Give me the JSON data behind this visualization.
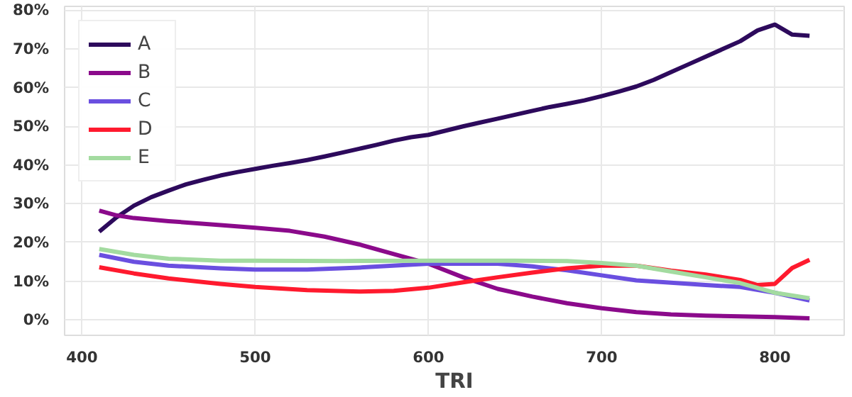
{
  "chart_data": {
    "type": "line",
    "xlabel": "TRI",
    "xlim": [
      390,
      840
    ],
    "ylim": [
      -4,
      81
    ],
    "xticks": [
      400,
      500,
      600,
      700,
      800
    ],
    "yticks": [
      {
        "value": 0,
        "label": "0%"
      },
      {
        "value": 10,
        "label": "10%"
      },
      {
        "value": 20,
        "label": "20%"
      },
      {
        "value": 30,
        "label": "30%"
      },
      {
        "value": 40,
        "label": "40%"
      },
      {
        "value": 50,
        "label": "50%"
      },
      {
        "value": 60,
        "label": "60%"
      },
      {
        "value": 70,
        "label": "70%"
      },
      {
        "value": 80,
        "label": "80%"
      }
    ],
    "grid": true,
    "legend": "top left",
    "line_style": "solid",
    "marker": "none",
    "series": [
      {
        "name": "A",
        "color": "#2d0a5c",
        "x": [
          410,
          420,
          430,
          440,
          450,
          460,
          470,
          480,
          490,
          500,
          510,
          520,
          530,
          540,
          550,
          560,
          570,
          580,
          590,
          600,
          610,
          620,
          630,
          640,
          650,
          660,
          670,
          680,
          690,
          700,
          710,
          720,
          730,
          740,
          750,
          760,
          770,
          780,
          790,
          800,
          810,
          820
        ],
        "values": [
          22.8,
          26.5,
          29.5,
          31.7,
          33.4,
          35,
          36.2,
          37.3,
          38.2,
          39,
          39.8,
          40.5,
          41.3,
          42.2,
          43.2,
          44.2,
          45.2,
          46.3,
          47.2,
          47.8,
          48.9,
          50,
          51,
          52,
          53,
          54,
          55,
          55.8,
          56.7,
          57.8,
          59,
          60.3,
          62,
          64,
          66,
          68,
          70,
          72,
          74.8,
          76.3,
          73.7,
          73.4
        ]
      },
      {
        "name": "B",
        "color": "#8b0a8b",
        "x": [
          410,
          420,
          430,
          450,
          480,
          500,
          520,
          540,
          560,
          580,
          600,
          620,
          640,
          660,
          680,
          700,
          720,
          740,
          760,
          780,
          800,
          820
        ],
        "values": [
          28.2,
          27,
          26.3,
          25.5,
          24.5,
          23.8,
          23,
          21.5,
          19.5,
          17,
          14.5,
          11,
          8,
          6,
          4.3,
          3,
          2,
          1.4,
          1.1,
          0.9,
          0.7,
          0.4
        ]
      },
      {
        "name": "C",
        "color": "#6a4fe0",
        "x": [
          410,
          430,
          450,
          480,
          500,
          530,
          560,
          600,
          640,
          660,
          680,
          700,
          720,
          740,
          760,
          780,
          800,
          820
        ],
        "values": [
          16.8,
          15,
          14,
          13.3,
          13,
          13,
          13.5,
          14.5,
          14.5,
          13.8,
          12.8,
          11.5,
          10.2,
          9.6,
          9,
          8.5,
          7,
          5
        ]
      },
      {
        "name": "D",
        "color": "#ff1a2e",
        "x": [
          410,
          430,
          450,
          480,
          500,
          530,
          560,
          580,
          600,
          620,
          640,
          660,
          680,
          700,
          720,
          740,
          760,
          780,
          790,
          800,
          810,
          820
        ],
        "values": [
          13.6,
          12,
          10.7,
          9.3,
          8.5,
          7.7,
          7.3,
          7.5,
          8.3,
          9.7,
          11,
          12.2,
          13.3,
          14,
          14,
          12.7,
          11.7,
          10.3,
          9,
          9.3,
          13.4,
          15.5
        ]
      },
      {
        "name": "E",
        "color": "#a3dba0",
        "x": [
          410,
          430,
          450,
          480,
          500,
          550,
          600,
          650,
          680,
          700,
          720,
          740,
          760,
          780,
          800,
          820
        ],
        "values": [
          18.3,
          16.8,
          15.8,
          15.3,
          15.3,
          15.2,
          15.3,
          15.3,
          15.2,
          14.7,
          14,
          12.5,
          11,
          9.5,
          7,
          5.6
        ]
      }
    ]
  }
}
